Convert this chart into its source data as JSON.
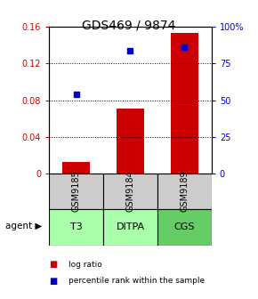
{
  "title": "GDS469 / 9874",
  "samples": [
    "GSM9185",
    "GSM9184",
    "GSM9189"
  ],
  "agents": [
    "T3",
    "DITPA",
    "CGS"
  ],
  "log_ratios": [
    0.013,
    0.071,
    0.153
  ],
  "percentile_ranks": [
    0.54,
    0.84,
    0.86
  ],
  "bar_color": "#cc0000",
  "dot_color": "#0000cc",
  "left_ylim": [
    0,
    0.16
  ],
  "right_ylim": [
    0,
    1.0
  ],
  "left_yticks": [
    0,
    0.04,
    0.08,
    0.12,
    0.16
  ],
  "left_yticklabels": [
    "0",
    "0.04",
    "0.08",
    "0.12",
    "0.16"
  ],
  "right_yticks": [
    0,
    0.25,
    0.5,
    0.75,
    1.0
  ],
  "right_yticklabels": [
    "0",
    "25",
    "50",
    "75",
    "100%"
  ],
  "sample_box_color": "#cccccc",
  "agent_box_color": "#aaffaa",
  "agent_box_color_dark": "#66cc66",
  "bar_width": 0.5,
  "title_fontsize": 10,
  "tick_fontsize": 7,
  "sample_label_fontsize": 7,
  "agent_label_fontsize": 8
}
